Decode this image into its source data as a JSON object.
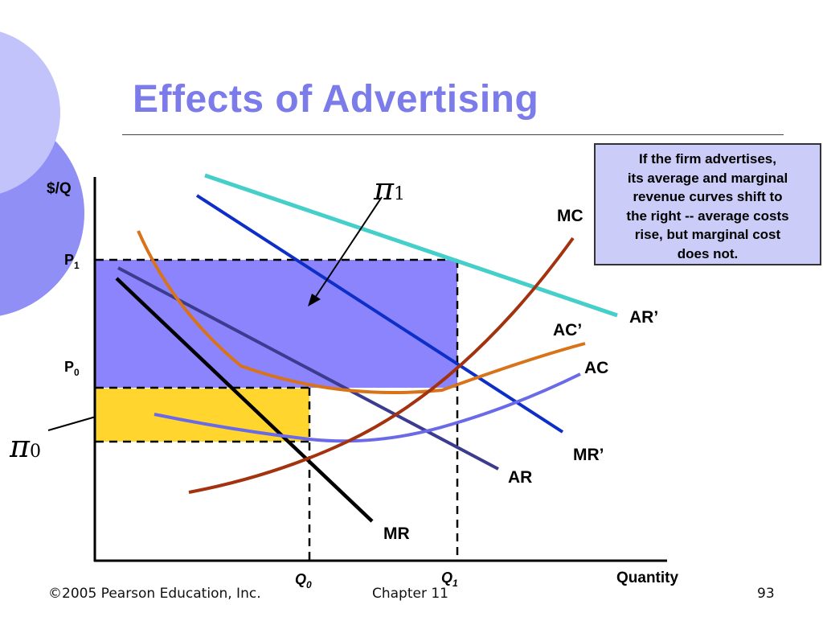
{
  "slide": {
    "title": "Effects of Advertising",
    "callout_lines": [
      "If the firm advertises,",
      "its average and marginal",
      "revenue curves shift to",
      "the right -- average costs",
      "rise, but marginal cost",
      "does not."
    ],
    "footer": {
      "copyright": "©2005 Pearson Education, Inc.",
      "chapter": "Chapter 11",
      "page": "93"
    }
  },
  "diagram": {
    "y_axis_label": "$/Q",
    "x_axis_label": "Quantity",
    "p1": {
      "main": "P",
      "sub": "1"
    },
    "p0": {
      "main": "P",
      "sub": "0"
    },
    "q0": {
      "main": "Q",
      "sub": "0"
    },
    "q1": {
      "main": "Q",
      "sub": "1"
    },
    "pi1": {
      "symbol": "π",
      "sub": "1"
    },
    "pi0": {
      "symbol": "π",
      "sub": "0"
    },
    "curves": {
      "mc": "MC",
      "ar_prime": "AR’",
      "ac_prime": "AC’",
      "ac": "AC",
      "mr_prime": "MR’",
      "ar": "AR",
      "mr": "MR"
    },
    "colors": {
      "profit_after": "#8c84fc",
      "profit_before": "#ffd52e",
      "ar_prime": "#45cfcb",
      "mr_prime": "#0d2fc8",
      "ar": "#3b3b8f",
      "mr": "#000000",
      "mc": "#a3330e",
      "ac_prime": "#d8731a",
      "ac": "#6a6ae8",
      "title": "#7b7bea",
      "callout_bg": "#cbccf7",
      "decor_dark": "#8f8ff5",
      "decor_light": "#c3c3fb"
    }
  }
}
